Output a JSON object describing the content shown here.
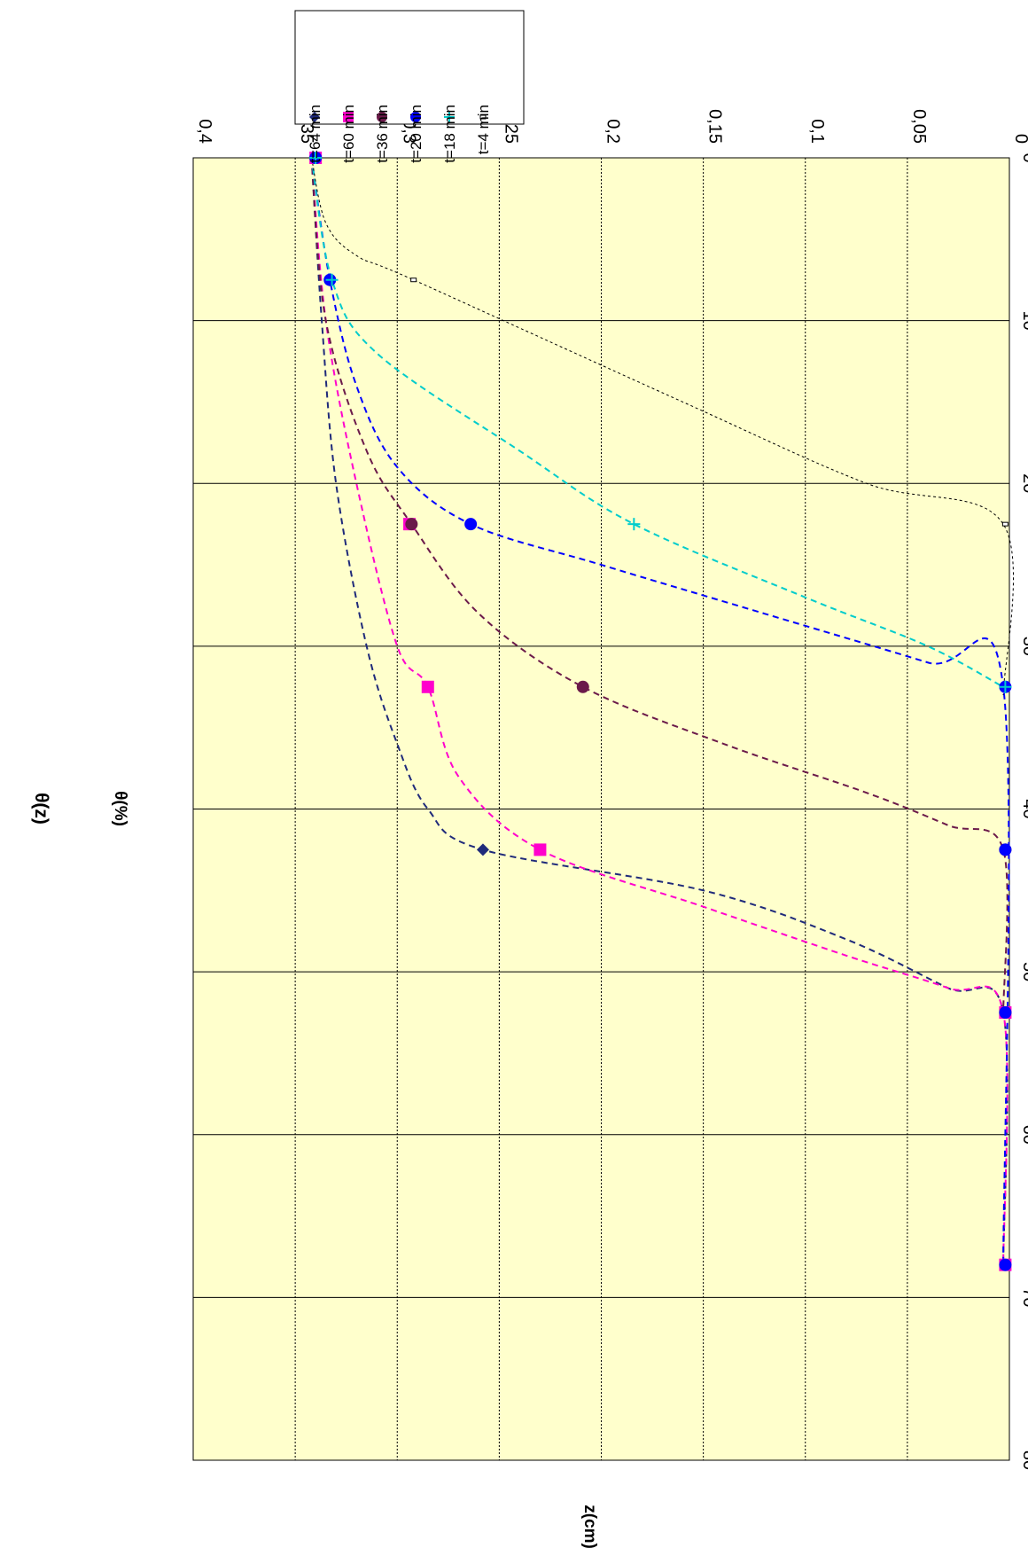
{
  "chart_data": {
    "type": "scatter",
    "title": "θ(z)",
    "xlabel": "z(cm)",
    "ylabel": "θ(%)",
    "xlim": [
      0,
      80
    ],
    "ylim": [
      0,
      0.4
    ],
    "x_ticks": [
      "0",
      "10",
      "20",
      "30",
      "40",
      "50",
      "60",
      "70",
      "80"
    ],
    "y_ticks": [
      "0",
      "0,05",
      "0,1",
      "0,15",
      "0,2",
      "0,25",
      "0,3",
      "0,35",
      "0,4"
    ],
    "grid": true,
    "legend_position": "top-right",
    "rotated": "90deg-clockwise",
    "series": [
      {
        "name": "t=64 min",
        "color": "#1f2a7a",
        "marker": "diamond",
        "points": [
          [
            0,
            0.34
          ],
          [
            42.5,
            0.258
          ],
          [
            52.5,
            0.002
          ],
          [
            68,
            0.002
          ]
        ],
        "curve": [
          [
            0,
            0.342
          ],
          [
            10,
            0.337
          ],
          [
            20,
            0.33
          ],
          [
            30,
            0.315
          ],
          [
            36,
            0.3
          ],
          [
            40,
            0.285
          ],
          [
            42.5,
            0.258
          ],
          [
            45,
            0.15
          ],
          [
            48,
            0.08
          ],
          [
            51,
            0.03
          ],
          [
            52.5,
            0.003
          ],
          [
            68,
            0.003
          ]
        ]
      },
      {
        "name": "t=60 min",
        "color": "#ff00cc",
        "marker": "square",
        "points": [
          [
            0,
            0.34
          ],
          [
            22.5,
            0.294
          ],
          [
            32.5,
            0.285
          ],
          [
            42.5,
            0.23
          ],
          [
            52.5,
            0.002
          ],
          [
            68,
            0.002
          ]
        ],
        "curve": [
          [
            0,
            0.342
          ],
          [
            10,
            0.335
          ],
          [
            20,
            0.32
          ],
          [
            30,
            0.3
          ],
          [
            32.5,
            0.285
          ],
          [
            38,
            0.27
          ],
          [
            42.5,
            0.23
          ],
          [
            46,
            0.15
          ],
          [
            49,
            0.08
          ],
          [
            51,
            0.03
          ],
          [
            52.5,
            0.003
          ],
          [
            68,
            0.003
          ]
        ]
      },
      {
        "name": "t=36 min",
        "color": "#6b1a4a",
        "marker": "circle",
        "points": [
          [
            0,
            0.34
          ],
          [
            22.5,
            0.293
          ],
          [
            32.5,
            0.209
          ],
          [
            42.5,
            0.002
          ],
          [
            52.5,
            0.002
          ]
        ],
        "curve": [
          [
            0,
            0.342
          ],
          [
            10,
            0.335
          ],
          [
            18,
            0.315
          ],
          [
            22.5,
            0.293
          ],
          [
            28,
            0.26
          ],
          [
            32.5,
            0.209
          ],
          [
            36,
            0.14
          ],
          [
            39,
            0.07
          ],
          [
            41,
            0.03
          ],
          [
            42.5,
            0.003
          ],
          [
            52.5,
            0.003
          ]
        ]
      },
      {
        "name": "t=20 min",
        "color": "#0000ff",
        "marker": "circle",
        "points": [
          [
            0,
            0.34
          ],
          [
            7.5,
            0.333
          ],
          [
            22.5,
            0.264
          ],
          [
            32.5,
            0.002
          ],
          [
            42.5,
            0.002
          ],
          [
            52.5,
            0.002
          ],
          [
            68,
            0.002
          ]
        ],
        "curve": [
          [
            0,
            0.342
          ],
          [
            7.5,
            0.333
          ],
          [
            14,
            0.32
          ],
          [
            19,
            0.3
          ],
          [
            22.5,
            0.264
          ],
          [
            25,
            0.2
          ],
          [
            28,
            0.12
          ],
          [
            31,
            0.04
          ],
          [
            32.5,
            0.003
          ],
          [
            68,
            0.003
          ]
        ]
      },
      {
        "name": "t=18 min",
        "color": "#00cccc",
        "marker": "plus",
        "points": [
          [
            0,
            0.34
          ],
          [
            7.5,
            0.332
          ],
          [
            22.5,
            0.184
          ],
          [
            32.5,
            0.002
          ]
        ],
        "curve": [
          [
            0,
            0.342
          ],
          [
            7.5,
            0.332
          ],
          [
            12,
            0.31
          ],
          [
            18,
            0.24
          ],
          [
            22.5,
            0.184
          ],
          [
            27,
            0.1
          ],
          [
            30,
            0.04
          ],
          [
            32.5,
            0.003
          ]
        ]
      },
      {
        "name": "t=4 min",
        "color": "#000000",
        "marker": "dash",
        "points": [
          [
            7.5,
            0.292
          ],
          [
            22.5,
            0.002
          ]
        ],
        "curve": [
          [
            0,
            0.342
          ],
          [
            4,
            0.335
          ],
          [
            6,
            0.32
          ],
          [
            7.5,
            0.292
          ],
          [
            15,
            0.16
          ],
          [
            20,
            0.07
          ],
          [
            22.5,
            0.003
          ],
          [
            33,
            0.003
          ]
        ]
      }
    ]
  }
}
